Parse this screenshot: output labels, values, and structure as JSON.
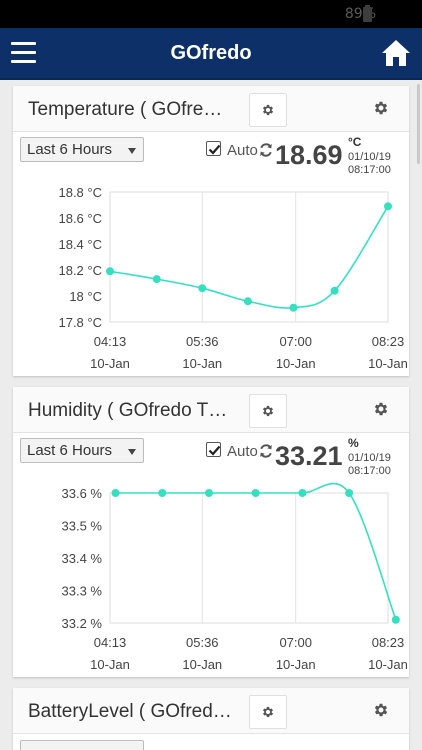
{
  "status_bar": {
    "battery_text": "89%"
  },
  "app": {
    "title": "GOfredo",
    "menu_icon": "hamburger-menu-icon",
    "home_icon": "home-icon"
  },
  "colors": {
    "appbar": "#0d3068",
    "series": "#35e0c0"
  },
  "cards": [
    {
      "title": "Temperature ( GOfre…",
      "range_label": "Last 6 Hours",
      "auto_label": "Auto",
      "auto_checked": true,
      "value": "18.69",
      "unit": "°C",
      "date": "01/10/19",
      "time": "08:17:00",
      "chart_data": {
        "type": "line",
        "x_ticks": [
          [
            "04:13",
            "10-Jan"
          ],
          [
            "05:36",
            "10-Jan"
          ],
          [
            "07:00",
            "10-Jan"
          ],
          [
            "08:23",
            "10-Jan"
          ]
        ],
        "y_ticks": [
          "18.8 °C",
          "18.6 °C",
          "18.4 °C",
          "18.2 °C",
          "18 °C",
          "17.8 °C"
        ],
        "ylim": [
          17.8,
          18.8
        ],
        "x_hours": [
          4.217,
          5.6,
          7.0,
          8.383
        ],
        "grid": true,
        "series": [
          {
            "x": [
              4.217,
              4.917,
              5.6,
              6.283,
              6.967,
              7.583,
              8.383
            ],
            "y": [
              18.19,
              18.13,
              18.06,
              17.96,
              17.91,
              18.04,
              18.69
            ]
          }
        ]
      }
    },
    {
      "title": "Humidity ( GOfredo T…",
      "range_label": "Last 6 Hours",
      "auto_label": "Auto",
      "auto_checked": true,
      "value": "33.21",
      "unit": "%",
      "date": "01/10/19",
      "time": "08:17:00",
      "chart_data": {
        "type": "line",
        "x_ticks": [
          [
            "04:13",
            "10-Jan"
          ],
          [
            "05:36",
            "10-Jan"
          ],
          [
            "07:00",
            "10-Jan"
          ],
          [
            "08:23",
            "10-Jan"
          ]
        ],
        "y_ticks": [
          "33.6 %",
          "33.5 %",
          "33.4 %",
          "33.3 %",
          "33.2 %"
        ],
        "ylim": [
          33.2,
          33.6
        ],
        "x_hours": [
          4.217,
          5.6,
          7.0,
          8.383
        ],
        "grid": true,
        "series": [
          {
            "x": [
              4.3,
              5.0,
              5.7,
              6.4,
              7.1,
              7.8,
              8.5
            ],
            "y": [
              33.6,
              33.6,
              33.6,
              33.6,
              33.6,
              33.6,
              33.21
            ]
          }
        ]
      }
    },
    {
      "title": "BatteryLevel ( GOfred…"
    }
  ]
}
